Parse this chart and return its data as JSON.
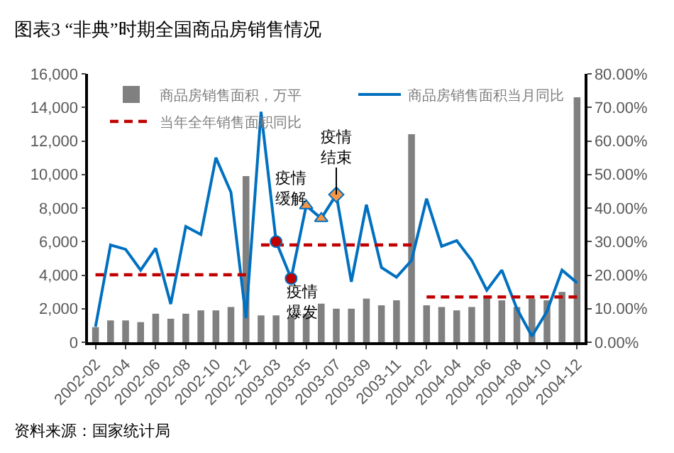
{
  "chart_data": {
    "type": "bar",
    "title": "图表3 “非典”时期全国商品房销售情况",
    "categories": [
      "2002-02",
      null,
      "2002-04",
      null,
      "2002-06",
      null,
      "2002-08",
      null,
      "2002-10",
      null,
      "2002-12",
      null,
      "2003-03",
      null,
      "2003-05",
      null,
      "2003-07",
      null,
      "2003-09",
      null,
      "2003-11",
      null,
      "2004-02",
      null,
      "2004-04",
      null,
      "2004-06",
      null,
      "2004-08",
      null,
      "2004-10",
      null,
      "2004-12"
    ],
    "series": [
      {
        "name": "商品房销售面积，万平",
        "color": "#808080",
        "values": [
          900,
          1300,
          1300,
          1200,
          1700,
          1400,
          1700,
          1900,
          1900,
          2100,
          9900,
          1600,
          1600,
          1500,
          1700,
          2300,
          2000,
          2000,
          2600,
          2200,
          2500,
          12400,
          2200,
          2100,
          1900,
          2100,
          2700,
          2500,
          2100,
          2600,
          2500,
          3000,
          14600
        ]
      },
      {
        "name": "商品房销售面积当月同比",
        "type": "line",
        "axis": "y2",
        "color": "#0070c0",
        "line_style": "solid",
        "values": [
          4.6,
          29.0,
          27.7,
          21.5,
          28.0,
          11.4,
          34.5,
          32.1,
          55.0,
          44.7,
          7.2,
          68.7,
          30.0,
          19.0,
          40.7,
          36.9,
          44.0,
          18.0,
          41.0,
          22.3,
          19.4,
          24.4,
          42.8,
          28.6,
          30.3,
          24.4,
          15.5,
          21.5,
          10.0,
          1.8,
          9.2,
          21.5,
          17.7
        ]
      },
      {
        "name": "当年全年销售面积同比",
        "type": "line",
        "axis": "y2",
        "color": "#c00000",
        "line_style": "dashed",
        "values": [
          20.1,
          20.1,
          20.1,
          20.1,
          20.1,
          20.1,
          20.1,
          20.1,
          20.1,
          20.1,
          20.1,
          null,
          null,
          null,
          null,
          null,
          null,
          null,
          null,
          null,
          null,
          null,
          null,
          null,
          null,
          null,
          null,
          null,
          null,
          null,
          null,
          null,
          null
        ]
      },
      {
        "type": "line",
        "axis": "y2",
        "color": "#c00000",
        "line_style": "dashed",
        "values": [
          null,
          null,
          null,
          null,
          null,
          null,
          null,
          null,
          null,
          null,
          null,
          29.0,
          29.0,
          29.0,
          29.0,
          29.0,
          29.0,
          29.0,
          29.0,
          29.0,
          29.0,
          29.0,
          null,
          null,
          null,
          null,
          null,
          null,
          null,
          null,
          null,
          null,
          null
        ]
      },
      {
        "type": "line",
        "axis": "y2",
        "color": "#c00000",
        "line_style": "dashed",
        "values": [
          null,
          null,
          null,
          null,
          null,
          null,
          null,
          null,
          null,
          null,
          null,
          null,
          null,
          null,
          null,
          null,
          null,
          null,
          null,
          null,
          null,
          null,
          13.5,
          13.5,
          13.5,
          13.5,
          13.5,
          13.5,
          13.5,
          13.5,
          13.5,
          13.5,
          13.5
        ]
      },
      {
        "type": "scatter",
        "axis": "y2",
        "color": "#c00000",
        "marker": "circle",
        "values": [
          null,
          null,
          null,
          null,
          null,
          null,
          null,
          null,
          null,
          null,
          null,
          null,
          30.0,
          19.0,
          null,
          null,
          null,
          null,
          null,
          null,
          null,
          null,
          null,
          null,
          null,
          null,
          null,
          null,
          null,
          null,
          null,
          null,
          null
        ]
      },
      {
        "type": "scatter",
        "axis": "y2",
        "color": "#f79646",
        "marker": "triangle",
        "values": [
          null,
          null,
          null,
          null,
          null,
          null,
          null,
          null,
          null,
          null,
          null,
          null,
          null,
          null,
          40.7,
          36.9,
          null,
          null,
          null,
          null,
          null,
          null,
          null,
          null,
          null,
          null,
          null,
          null,
          null,
          null,
          null,
          null,
          null
        ]
      },
      {
        "type": "scatter",
        "axis": "y2",
        "color": "#f79646",
        "marker": "diamond",
        "values": [
          null,
          null,
          null,
          null,
          null,
          null,
          null,
          null,
          null,
          null,
          null,
          null,
          null,
          null,
          null,
          null,
          44.0,
          null,
          null,
          null,
          null,
          null,
          null,
          null,
          null,
          null,
          null,
          null,
          null,
          null,
          null,
          null,
          null
        ]
      }
    ],
    "ylim": [
      0,
      16000
    ],
    "yticks": [
      {
        "value": 0,
        "label": "0"
      },
      {
        "value": 2000,
        "label": "2,000"
      },
      {
        "value": 4000,
        "label": "4,000"
      },
      {
        "value": 6000,
        "label": "6,000"
      },
      {
        "value": 8000,
        "label": "8,000"
      },
      {
        "value": 10000,
        "label": "10,000"
      },
      {
        "value": 12000,
        "label": "12,000"
      },
      {
        "value": 14000,
        "label": "14,000"
      },
      {
        "value": 16000,
        "label": "16,000"
      }
    ],
    "y2lim": [
      0,
      80
    ],
    "y2ticks": [
      {
        "value": 0,
        "label": "0.00%"
      },
      {
        "value": 10,
        "label": "10.00%"
      },
      {
        "value": 20,
        "label": "20.00%"
      },
      {
        "value": 30,
        "label": "30.00%"
      },
      {
        "value": 40,
        "label": "40.00%"
      },
      {
        "value": 50,
        "label": "50.00%"
      },
      {
        "value": 60,
        "label": "60.00%"
      },
      {
        "value": 70,
        "label": "70.00%"
      },
      {
        "value": 80,
        "label": "80.00%"
      }
    ],
    "annotations": [
      "疫情爆发",
      "疫情缓解",
      {
        "text": "疫情结束",
        "x": "2003-07",
        "y": 8800
      },
      "资料来源：国家统计局"
    ],
    "legend": "top"
  }
}
